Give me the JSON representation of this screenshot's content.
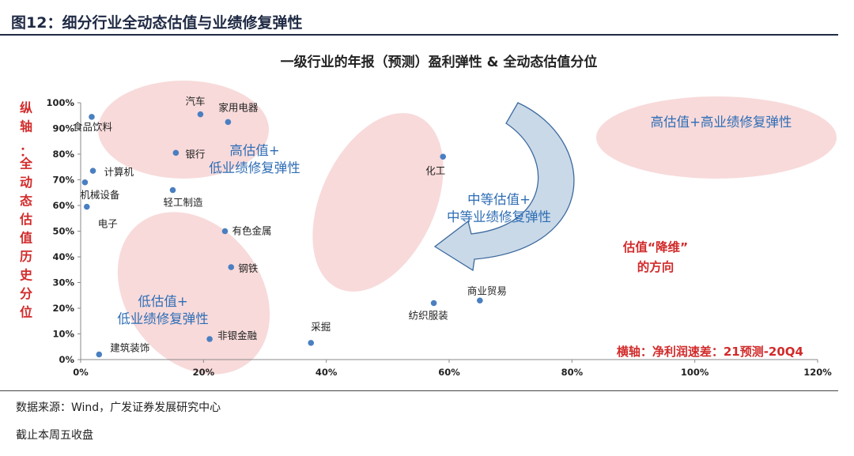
{
  "figure_title": "图12：细分行业全动态估值与业绩修复弹性",
  "source": "数据来源：Wind，广发证券发展研究中心",
  "note": "截止本周五收盘",
  "colors": {
    "point": "#4a7fc1",
    "zone_fill": "#f7d4d4",
    "zone_label": "#2e6db5",
    "axis_red": "#d22b2b",
    "arrow_fill": "#c9d9e8",
    "arrow_stroke": "#3d6a9e"
  },
  "chart_data": {
    "type": "scatter",
    "title": "一级行业的年报（预测）盈利弹性 & 全动态估值分位",
    "xlabel": "横轴：净利润速差：21预测-20Q4",
    "ylabel": "纵轴：全动态估值历史分位",
    "xlim": [
      0,
      1.2
    ],
    "ylim": [
      0,
      1.0
    ],
    "xticks": [
      "0%",
      "20%",
      "40%",
      "60%",
      "80%",
      "100%",
      "120%"
    ],
    "yticks": [
      "0%",
      "10%",
      "20%",
      "30%",
      "40%",
      "50%",
      "60%",
      "70%",
      "80%",
      "90%",
      "100%"
    ],
    "points": [
      {
        "label": "食品饮料",
        "x": 0.018,
        "y": 0.945
      },
      {
        "label": "汽车",
        "x": 0.195,
        "y": 0.955
      },
      {
        "label": "家用电器",
        "x": 0.24,
        "y": 0.925
      },
      {
        "label": "银行",
        "x": 0.155,
        "y": 0.805
      },
      {
        "label": "计算机",
        "x": 0.02,
        "y": 0.735
      },
      {
        "label": "机械设备",
        "x": 0.007,
        "y": 0.69
      },
      {
        "label": "轻工制造",
        "x": 0.15,
        "y": 0.66
      },
      {
        "label": "电子",
        "x": 0.01,
        "y": 0.595
      },
      {
        "label": "有色金属",
        "x": 0.235,
        "y": 0.5
      },
      {
        "label": "钢铁",
        "x": 0.245,
        "y": 0.36
      },
      {
        "label": "非银金融",
        "x": 0.21,
        "y": 0.08
      },
      {
        "label": "建筑装饰",
        "x": 0.03,
        "y": 0.02
      },
      {
        "label": "采掘",
        "x": 0.375,
        "y": 0.065
      },
      {
        "label": "化工",
        "x": 0.59,
        "y": 0.79
      },
      {
        "label": "纺织服装",
        "x": 0.575,
        "y": 0.22
      },
      {
        "label": "商业贸易",
        "x": 0.65,
        "y": 0.23
      }
    ],
    "zones": [
      {
        "label": [
          "高估值+",
          "低业绩修复弹性"
        ]
      },
      {
        "label": [
          "中等估值+",
          "中等业绩修复弹性"
        ]
      },
      {
        "label": [
          "高估值+高业绩修复弹性"
        ]
      },
      {
        "label": [
          "低估值+",
          "低业绩修复弹性"
        ]
      }
    ],
    "annotation": [
      "估值“降维”",
      "的方向"
    ]
  }
}
